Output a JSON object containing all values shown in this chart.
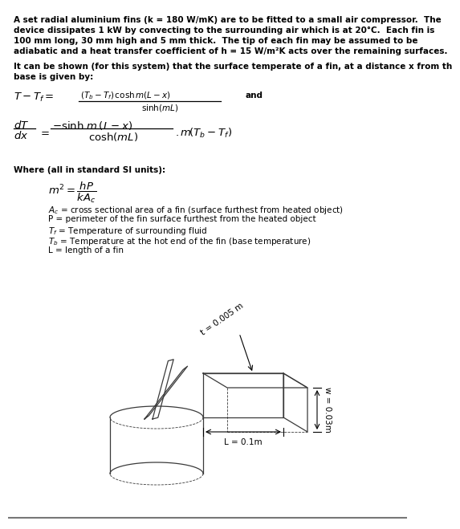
{
  "bg_color": "#ffffff",
  "text_color": "#000000",
  "para1_lines": [
    "A set radial aluminium fins (k = 180 W/mK) are to be fitted to a small air compressor.  The",
    "device dissipates 1 kW by convecting to the surrounding air which is at 20°C.  Each fin is",
    "100 mm long, 30 mm high and 5 mm thick.  The tip of each fin may be assumed to be",
    "adiabatic and a heat transfer coefficient of h = 15 W/m²K acts over the remaining surfaces."
  ],
  "para2_lines": [
    "It can be shown (for this system) that the surface temperate of a fin, at a distance x from th",
    "base is given by:"
  ],
  "where_header": "Where (all in standard SI units):",
  "defs": [
    "Aᴄ = cross sectional area of a fin (surface furthest from heated object)",
    "P = perimeter of the fin surface furthest from the heated object",
    "Tᶠ = Temperature of surrounding fluid",
    "Tᵇ = Temperature at the hot end of the fin (base temperature)",
    "L = length of a fin"
  ],
  "label_t": "t = 0.005 m",
  "label_w": "w = 0.03m",
  "label_L": "L = 0.1m",
  "font_size_body": 7.5,
  "font_size_eq": 9.5,
  "font_size_small_eq": 7.5,
  "line_color": "#3a3a3a",
  "dim_color": "#000000"
}
